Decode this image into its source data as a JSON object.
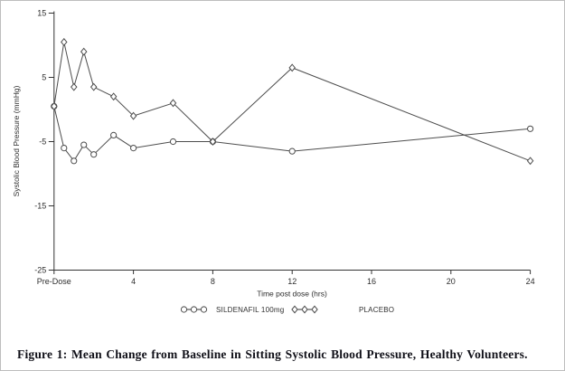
{
  "figure": {
    "caption": "Figure 1: Mean Change from Baseline in Sitting Systolic Blood Pressure, Healthy Volunteers."
  },
  "chart_data": {
    "type": "line",
    "title": "",
    "xlabel": "Time post dose (hrs)",
    "ylabel": "Systolic Blood Pressure (mmHg)",
    "x_tick_values": [
      0,
      4,
      8,
      12,
      16,
      20,
      24
    ],
    "x_tick_labels": [
      "Pre-Dose",
      "4",
      "8",
      "12",
      "16",
      "20",
      "24"
    ],
    "y_tick_values": [
      15,
      5,
      -5,
      -15,
      -25
    ],
    "y_tick_labels": [
      "15",
      "5",
      "-5",
      "-15",
      "-25"
    ],
    "xlim": [
      0,
      24
    ],
    "ylim": [
      -25,
      15
    ],
    "grid": false,
    "legend_position": "bottom",
    "x_unit": "hours",
    "y_unit": "mmHg",
    "x": [
      0,
      0.5,
      1,
      1.5,
      2,
      3,
      4,
      6,
      8,
      12,
      24
    ],
    "series": [
      {
        "name": "SILDENAFIL 100mg",
        "marker": "circle",
        "values": [
          0.5,
          -6,
          -8,
          -5.5,
          -7,
          -4,
          -6,
          -5,
          -5,
          -6.5,
          -3
        ]
      },
      {
        "name": "PLACEBO",
        "marker": "diamond",
        "values": [
          0.5,
          10.5,
          3.5,
          9,
          3.5,
          2,
          -1,
          1,
          -5,
          6.5,
          -8
        ]
      }
    ],
    "colors": {
      "line": "#4d4d4d",
      "marker_fill": "#ffffff",
      "axis": "#333333",
      "text": "#2e2e2e"
    }
  }
}
